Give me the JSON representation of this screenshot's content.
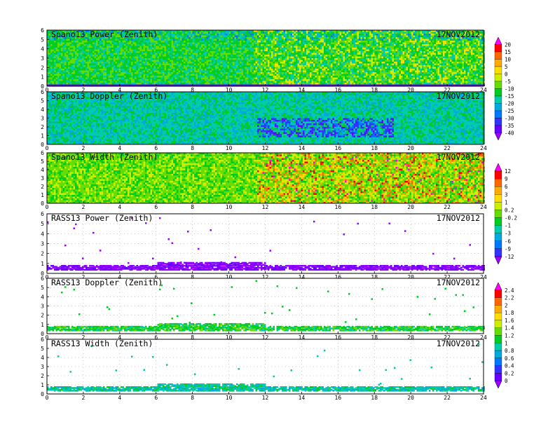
{
  "chart_data": [
    {
      "type": "heatmap",
      "title": "Spano13 Power (Zenith)",
      "date": "17NOV2012",
      "xlim": [
        0,
        24
      ],
      "ylim": [
        0,
        6
      ],
      "xticks": [
        0,
        2,
        4,
        6,
        8,
        10,
        12,
        14,
        16,
        18,
        20,
        22,
        24
      ],
      "yticks": [
        0,
        1,
        2,
        3,
        4,
        5,
        6
      ],
      "style": "dense",
      "colorbar_group": 0
    },
    {
      "type": "heatmap",
      "title": "Spano13 Doppler (Zenith)",
      "date": "17NOV2012",
      "xlim": [
        0,
        24
      ],
      "ylim": [
        0,
        6
      ],
      "xticks": [
        0,
        2,
        4,
        6,
        8,
        10,
        12,
        14,
        16,
        18,
        20,
        22,
        24
      ],
      "yticks": [
        0,
        1,
        2,
        3,
        4,
        5,
        6
      ],
      "style": "dense",
      "colorbar_group": 0
    },
    {
      "type": "heatmap",
      "title": "Spano13 Width (Zenith)",
      "date": "17NOV2012",
      "xlim": [
        0,
        24
      ],
      "ylim": [
        0,
        6
      ],
      "xticks": [
        0,
        2,
        4,
        6,
        8,
        10,
        12,
        14,
        16,
        18,
        20,
        22,
        24
      ],
      "yticks": [
        0,
        1,
        2,
        3,
        4,
        5,
        6
      ],
      "style": "dense",
      "colorbar_group": 1
    },
    {
      "type": "heatmap",
      "title": "RASS13 Power (Zenith)",
      "date": "17NOV2012",
      "xlim": [
        0,
        24
      ],
      "ylim": [
        0,
        6
      ],
      "xticks": [
        0,
        2,
        4,
        6,
        8,
        10,
        12,
        14,
        16,
        18,
        20,
        22,
        24
      ],
      "yticks": [
        0,
        1,
        2,
        3,
        4,
        5,
        6
      ],
      "style": "sparse",
      "colorbar_group": 1
    },
    {
      "type": "heatmap",
      "title": "RASS13 Doppler (Zenith)",
      "date": "17NOV2012",
      "xlim": [
        0,
        24
      ],
      "ylim": [
        0,
        6
      ],
      "xticks": [
        0,
        2,
        4,
        6,
        8,
        10,
        12,
        14,
        16,
        18,
        20,
        22,
        24
      ],
      "yticks": [
        0,
        1,
        2,
        3,
        4,
        5,
        6
      ],
      "style": "sparse",
      "colorbar_group": 2
    },
    {
      "type": "heatmap",
      "title": "RASS13 Width (Zenith)",
      "date": "17NOV2012",
      "xlim": [
        0,
        24
      ],
      "ylim": [
        0,
        6
      ],
      "xticks": [
        0,
        2,
        4,
        6,
        8,
        10,
        12,
        14,
        16,
        18,
        20,
        22,
        24
      ],
      "yticks": [
        0,
        1,
        2,
        3,
        4,
        5,
        6
      ],
      "style": "sparse",
      "colorbar_group": 2
    }
  ],
  "colorbars": [
    {
      "labels": [
        "20",
        "15",
        "10",
        "5",
        "0",
        "-5",
        "-10",
        "-15",
        "-20",
        "-25",
        "-30",
        "-35",
        "-40"
      ],
      "colors": [
        "#ff00ff",
        "#ff0000",
        "#ff6600",
        "#ffaa00",
        "#ffdd00",
        "#ccee00",
        "#66dd00",
        "#00cc22",
        "#00ccaa",
        "#00aadd",
        "#0077ff",
        "#3333ff",
        "#6600ff",
        "#9900ff"
      ]
    },
    {
      "labels": [
        "12",
        "9",
        "6",
        "3",
        "1",
        "0.2",
        "-0.2",
        "-1",
        "-3",
        "-6",
        "-9",
        "-12"
      ],
      "colors": [
        "#ff00ff",
        "#ff0000",
        "#ff6600",
        "#ffaa00",
        "#ffdd00",
        "#ccee00",
        "#66dd00",
        "#00cc22",
        "#00ccaa",
        "#00aadd",
        "#0077ff",
        "#3333ff",
        "#9900ff"
      ]
    },
    {
      "labels": [
        "2.4",
        "2.2",
        "2",
        "1.8",
        "1.6",
        "1.4",
        "1.2",
        "1",
        "0.8",
        "0.6",
        "0.4",
        "0.2",
        "0"
      ],
      "colors": [
        "#ff00ff",
        "#ff0000",
        "#ff6600",
        "#ffaa00",
        "#ffdd00",
        "#ccee00",
        "#66dd00",
        "#00cc22",
        "#00ccaa",
        "#00aadd",
        "#0077ff",
        "#3333ff",
        "#6600ff",
        "#9900ff"
      ]
    }
  ]
}
